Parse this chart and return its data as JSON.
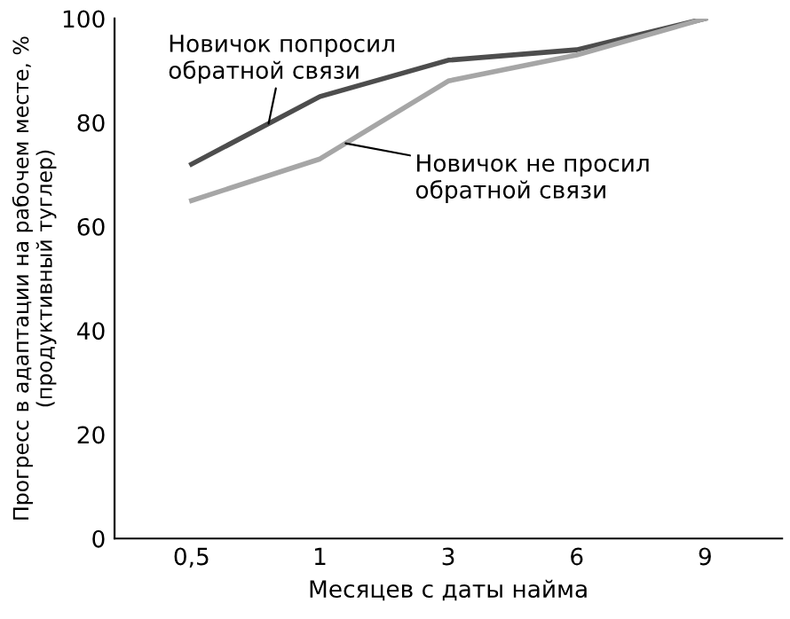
{
  "chart_data": {
    "type": "line",
    "xlabel": "Месяцев с даты найма",
    "ylabel": "Прогресс в адаптации на рабочем месте, %\n(продуктивный туглер)",
    "categories": [
      "0,5",
      "1",
      "3",
      "6",
      "9"
    ],
    "series": [
      {
        "name": "Новичок попросил\nобратной связи",
        "color": "#4d4d4d",
        "values": [
          72,
          85,
          92,
          94,
          100
        ]
      },
      {
        "name": "Новичок не просил\nобратной связи",
        "color": "#a6a6a6",
        "values": [
          65,
          73,
          88,
          93,
          100
        ]
      }
    ],
    "ylim": [
      0,
      100
    ],
    "yticks": [
      0,
      20,
      40,
      60,
      80,
      100
    ],
    "grid": false,
    "legend": false,
    "marker": "none",
    "line_style": "solid"
  }
}
